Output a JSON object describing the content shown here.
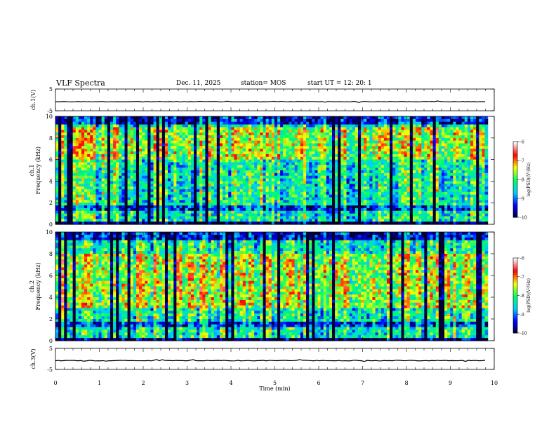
{
  "header": {
    "title": "VLF Spectra",
    "date": "Dec. 11, 2025",
    "station": "station= MOS",
    "start_ut": "start  UT =   12: 20: 1"
  },
  "chart_data": {
    "type": "spectrogram",
    "x_axis": {
      "label": "Time  (min)",
      "range": [
        0,
        10
      ],
      "ticks": [
        "0",
        "1",
        "2",
        "3",
        "4",
        "5",
        "6",
        "7",
        "8",
        "9",
        "10"
      ]
    },
    "panels": [
      {
        "id": "ch1-wave",
        "type": "line",
        "ylabel": "ch.1(V)",
        "ylim": [
          -5,
          5
        ],
        "yticks": [
          "5",
          "-5"
        ],
        "level": -0.8
      },
      {
        "id": "ch1-spec",
        "type": "heatmap",
        "ylabel": "ch.1",
        "ylabel2": "Frequency (kHz)",
        "ylim": [
          0,
          10
        ],
        "yticks": [
          "0",
          "2",
          "4",
          "6",
          "8",
          "10"
        ],
        "data_end_min": 9.85,
        "peak_band_khz": [
          6,
          9
        ]
      },
      {
        "id": "ch2-spec",
        "type": "heatmap",
        "ylabel": "ch.2",
        "ylabel2": "Frequency (kHz)",
        "ylim": [
          0,
          10
        ],
        "yticks": [
          "0",
          "2",
          "4",
          "6",
          "8",
          "10"
        ],
        "data_end_min": 9.85,
        "peak_band_khz": [
          3,
          8
        ]
      },
      {
        "id": "ch3-wave",
        "type": "line",
        "ylabel": "ch.3(V)",
        "ylim": [
          -5,
          5
        ],
        "yticks": [
          "5",
          "-5"
        ],
        "level": -0.8
      }
    ],
    "colorbars": [
      {
        "for": "ch1-spec",
        "label": "log(PSD)(V²/Hz)",
        "range": [
          -10,
          -6
        ],
        "ticks": [
          "-6",
          "-7",
          "-8",
          "-9",
          "-10"
        ]
      },
      {
        "for": "ch2-spec",
        "label": "log(PSD)(V²/Hz)",
        "range": [
          -10,
          -6
        ],
        "ticks": [
          "-6",
          "-7",
          "-8",
          "-9",
          "-10"
        ]
      }
    ],
    "colormap": [
      "#000033",
      "#0000ff",
      "#00ccff",
      "#00ff66",
      "#ffff00",
      "#ff0000",
      "#ffffff"
    ]
  }
}
